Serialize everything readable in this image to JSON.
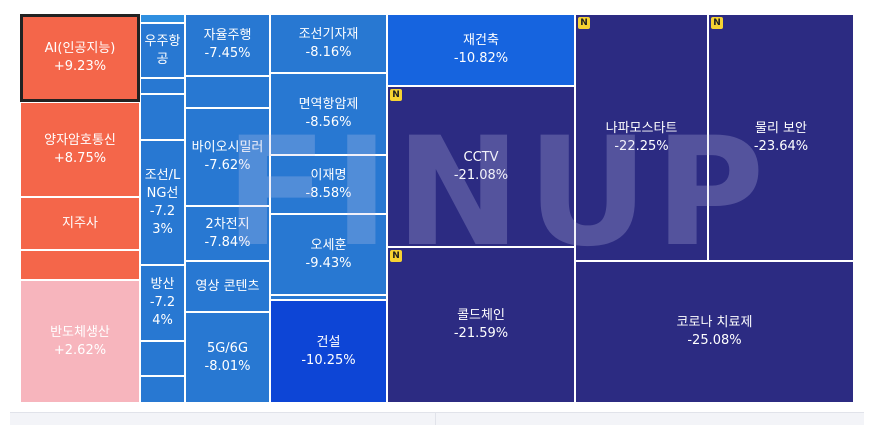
{
  "chart_data": {
    "type": "treemap",
    "watermark": "FINUP",
    "badge_label": "N",
    "colors": {
      "strong_up": "#f4664a",
      "mild_up": "#f7b5bd",
      "light_blue": "#2f8fe0",
      "mid_blue": "#2878d2",
      "blue": "#1664df",
      "deep_blue": "#0d45d6",
      "navy": "#2c2b82",
      "badge": "#f6d332",
      "selected_border": "#222222"
    },
    "tiles": [
      {
        "name": "AI(인공지능)",
        "change": "+9.23%",
        "change_value": 9.23,
        "selected": true
      },
      {
        "name": "양자암호통신",
        "change": "+8.75%",
        "change_value": 8.75
      },
      {
        "name": "지주사",
        "change": "",
        "change_value": null
      },
      {
        "name": "",
        "change": "",
        "change_value": null
      },
      {
        "name": "반도체생산",
        "change": "+2.62%",
        "change_value": 2.62
      },
      {
        "name": "",
        "change": "",
        "change_value": null
      },
      {
        "name": "우주항공",
        "change": "",
        "change_value": null
      },
      {
        "name": "",
        "change": "",
        "change_value": null
      },
      {
        "name": "",
        "change": "",
        "change_value": null
      },
      {
        "name": "조선/LNG선",
        "change": "-7.23%",
        "change_value": -7.23
      },
      {
        "name": "방산",
        "change": "-7.24%",
        "change_value": -7.24
      },
      {
        "name": "",
        "change": "",
        "change_value": null
      },
      {
        "name": "",
        "change": "",
        "change_value": null
      },
      {
        "name": "자율주행",
        "change": "-7.45%",
        "change_value": -7.45
      },
      {
        "name": "",
        "change": "",
        "change_value": null
      },
      {
        "name": "바이오시밀러",
        "change": "-7.62%",
        "change_value": -7.62
      },
      {
        "name": "2차전지",
        "change": "-7.84%",
        "change_value": -7.84
      },
      {
        "name": "영상 콘텐츠",
        "change": "",
        "change_value": null
      },
      {
        "name": "5G/6G",
        "change": "-8.01%",
        "change_value": -8.01
      },
      {
        "name": "조선기자재",
        "change": "-8.16%",
        "change_value": -8.16
      },
      {
        "name": "면역항암제",
        "change": "-8.56%",
        "change_value": -8.56
      },
      {
        "name": "이재명",
        "change": "-8.58%",
        "change_value": -8.58
      },
      {
        "name": "오세훈",
        "change": "-9.43%",
        "change_value": -9.43
      },
      {
        "name": "",
        "change": "",
        "change_value": null
      },
      {
        "name": "건설",
        "change": "-10.25%",
        "change_value": -10.25
      },
      {
        "name": "재건축",
        "change": "-10.82%",
        "change_value": -10.82
      },
      {
        "name": "CCTV",
        "change": "-21.08%",
        "change_value": -21.08,
        "badge": true
      },
      {
        "name": "콜드체인",
        "change": "-21.59%",
        "change_value": -21.59,
        "badge": true
      },
      {
        "name": "나파모스타트",
        "change": "-22.25%",
        "change_value": -22.25,
        "badge": true
      },
      {
        "name": "물리 보안",
        "change": "-23.64%",
        "change_value": -23.64,
        "badge": true
      },
      {
        "name": "코로나 치료제",
        "change": "-25.08%",
        "change_value": -25.08
      }
    ]
  }
}
